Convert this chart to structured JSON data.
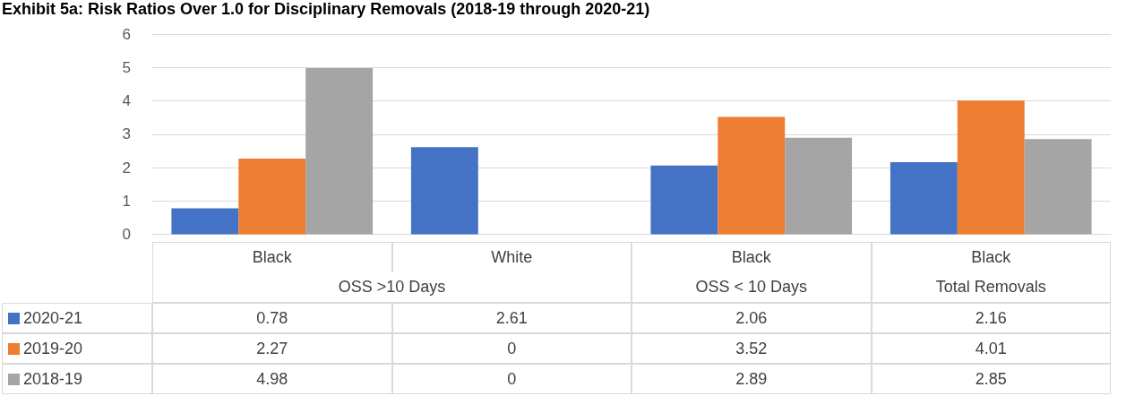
{
  "chart_data": {
    "type": "bar",
    "title": "Exhibit 5a: Risk Ratios Over 1.0 for Disciplinary Removals (2018-19 through 2020-21)",
    "categories": [
      "Black",
      "White",
      "Black",
      "Black"
    ],
    "annotations": [
      "OSS >10 Days",
      "OSS < 10 Days",
      "Total Removals"
    ],
    "series": [
      {
        "name": "2020-21",
        "color": "#4472c4",
        "values": [
          0.78,
          2.61,
          2.06,
          2.16
        ]
      },
      {
        "name": "2019-20",
        "color": "#ed7d31",
        "values": [
          2.27,
          0,
          3.52,
          4.01
        ]
      },
      {
        "name": "2018-19",
        "color": "#a5a5a5",
        "values": [
          4.98,
          0,
          2.89,
          2.85
        ]
      }
    ],
    "ylim": [
      0,
      6
    ],
    "yticks": [
      0,
      1,
      2,
      3,
      4,
      5,
      6
    ],
    "grid": "y",
    "legend": "bottom",
    "data_labels": true
  }
}
